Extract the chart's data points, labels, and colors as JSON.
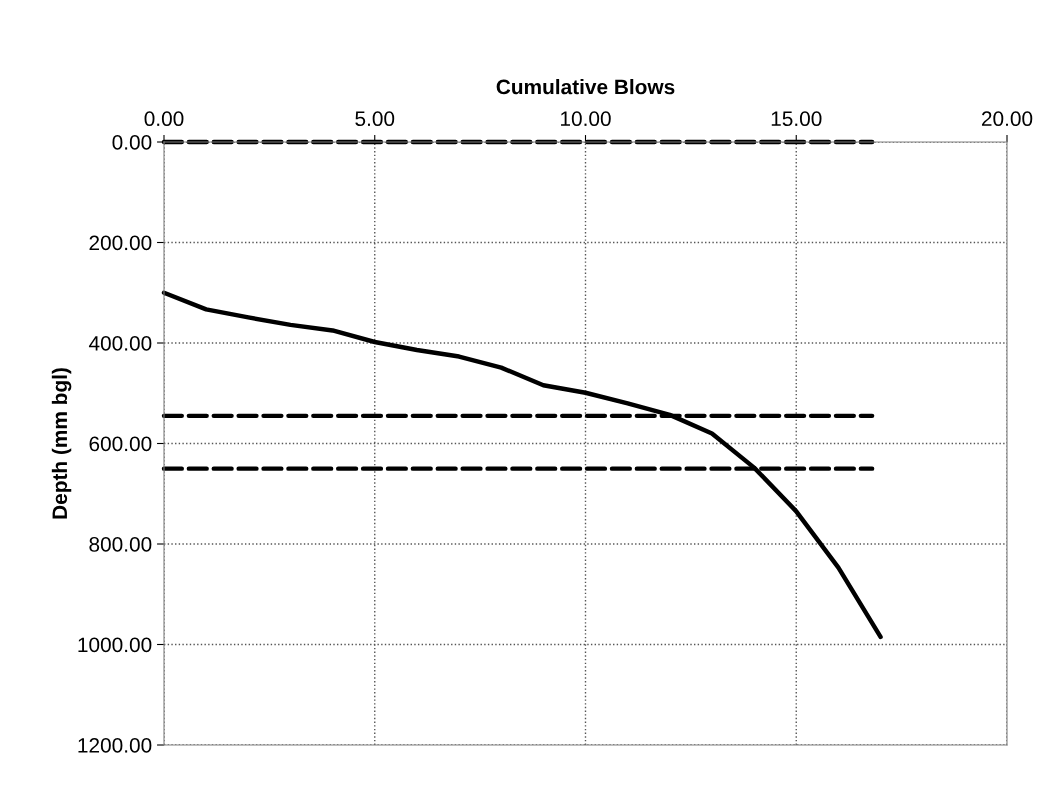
{
  "chart_data": {
    "type": "line",
    "xlabel": "Cumulative Blows",
    "ylabel": "Depth (mm bgl)",
    "xlim": [
      0,
      20
    ],
    "ylim": [
      1200,
      0
    ],
    "xticks": [
      {
        "value": 0,
        "label": "0.00"
      },
      {
        "value": 5,
        "label": "5.00"
      },
      {
        "value": 10,
        "label": "10.00"
      },
      {
        "value": 15,
        "label": "15.00"
      },
      {
        "value": 20,
        "label": "20.00"
      }
    ],
    "yticks": [
      {
        "value": 0,
        "label": "0.00"
      },
      {
        "value": 200,
        "label": "200.00"
      },
      {
        "value": 400,
        "label": "400.00"
      },
      {
        "value": 600,
        "label": "600.00"
      },
      {
        "value": 800,
        "label": "800.00"
      },
      {
        "value": 1000,
        "label": "1000.00"
      },
      {
        "value": 1200,
        "label": "1200.00"
      }
    ],
    "grid": true,
    "marker": "none",
    "series": [
      {
        "color": "#000000",
        "line_style": "solid",
        "x": [
          0,
          1,
          2,
          3,
          4,
          5,
          6,
          7,
          8,
          9,
          10,
          11,
          12,
          13,
          14,
          15,
          16,
          17
        ],
        "values": [
          300,
          333,
          349,
          364,
          375,
          398,
          414,
          427,
          449,
          484,
          499,
          520,
          543,
          580,
          648,
          735,
          847,
          985
        ]
      },
      {
        "color": "#000000",
        "line_style": "dashed",
        "x": [
          0,
          16.8
        ],
        "values": [
          0,
          0
        ]
      },
      {
        "color": "#000000",
        "line_style": "dashed",
        "x": [
          0,
          16.8
        ],
        "values": [
          545,
          545
        ]
      },
      {
        "color": "#000000",
        "line_style": "dashed",
        "x": [
          0,
          16.8
        ],
        "values": [
          650,
          650
        ]
      }
    ]
  }
}
